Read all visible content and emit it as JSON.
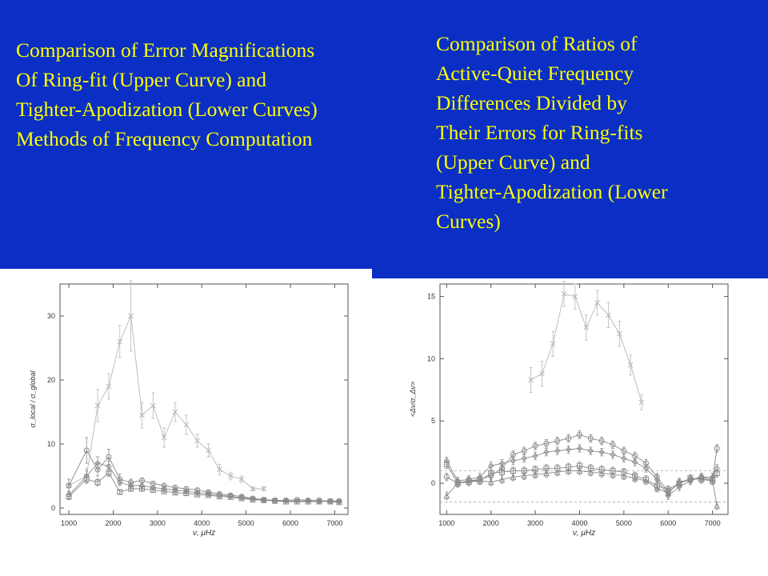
{
  "captions": {
    "left": [
      "Comparison of Error Magnifications",
      "Of Ring-fit (Upper Curve) and",
      "Tighter-Apodization (Lower Curves)",
      "Methods of Frequency Computation"
    ],
    "right": [
      "Comparison of Ratios of",
      "Active-Quiet Frequency",
      "Differences Divided by",
      "Their Errors for Ring-fits",
      "(Upper Curve) and",
      "Tighter-Apodization (Lower",
      "Curves)"
    ]
  },
  "colors": {
    "banner": "#0b2fc4",
    "caption_text": "#ffff00",
    "upper_curve": "#b8b8b8",
    "lower_curves": "#8a8a8a"
  },
  "chart_data": [
    {
      "type": "line",
      "xlabel": "ν, μHz",
      "ylabel": "σ_local / σ_global",
      "xlim": [
        800,
        7300
      ],
      "ylim": [
        -1,
        35
      ],
      "xticks": [
        1000,
        2000,
        3000,
        4000,
        5000,
        6000,
        7000
      ],
      "yticks": [
        0,
        10,
        20,
        30
      ],
      "grid": false,
      "series": [
        {
          "x": [
            1000,
            1400,
            1650,
            1900,
            2150,
            2400,
            2650,
            2900,
            3150,
            3400,
            3650,
            3900,
            4150,
            4400,
            4650,
            4900,
            5150,
            5400
          ],
          "y": [
            3.5,
            5,
            16,
            19,
            26,
            30,
            14.5,
            16,
            11,
            15,
            13,
            10.5,
            9,
            6,
            5,
            4.5,
            3,
            3
          ],
          "err": [
            1,
            1.2,
            2.5,
            2,
            2.5,
            5.5,
            2,
            2,
            1.5,
            1.5,
            1.5,
            1,
            1,
            0.8,
            0.6,
            0.5,
            0.3,
            0.3
          ]
        },
        {
          "x": [
            1000,
            1400,
            1650,
            1900,
            2150,
            2400,
            2650,
            2900,
            3150,
            3400,
            3650,
            3900,
            4150,
            4400,
            4650,
            4900,
            5150,
            5400,
            5650,
            5900,
            6150,
            6400,
            6650,
            6900,
            7100
          ],
          "y": [
            3.5,
            9,
            6,
            8,
            4.5,
            4,
            4.3,
            3.8,
            3.5,
            3.2,
            3,
            2.8,
            2.5,
            2.2,
            2,
            1.8,
            1.5,
            1.3,
            1.2,
            1.2,
            1.3,
            1.2,
            1.2,
            1.1,
            1.1
          ],
          "err": [
            1,
            2,
            1,
            1.2,
            0.8,
            0.5,
            0.4,
            0.4,
            0.3,
            0.3,
            0.3,
            0.3,
            0.2,
            0.2,
            0.2,
            0.2,
            0.2,
            0.2,
            0.1,
            0.1,
            0.1,
            0.1,
            0.1,
            0.1,
            0.1
          ]
        },
        {
          "x": [
            1000,
            1400,
            1650,
            1900,
            2150,
            2400,
            2650,
            2900,
            3150,
            3400,
            3650,
            3900,
            4150,
            4400,
            4650,
            4900,
            5150,
            5400,
            5650,
            5900,
            6150,
            6400,
            6650,
            6900,
            7100
          ],
          "y": [
            2,
            5,
            7,
            6.5,
            4,
            3.5,
            3.5,
            3.2,
            3,
            2.8,
            2.6,
            2.4,
            2.2,
            2,
            1.8,
            1.6,
            1.4,
            1.3,
            1.2,
            1.1,
            1.1,
            1.1,
            1,
            1,
            1
          ],
          "err": [
            0.6,
            0.8,
            1,
            0.8,
            0.5,
            0.4,
            0.4,
            0.3,
            0.3,
            0.3,
            0.2,
            0.2,
            0.2,
            0.2,
            0.2,
            0.2,
            0.1,
            0.1,
            0.1,
            0.1,
            0.1,
            0.1,
            0.1,
            0.1,
            0.1
          ]
        },
        {
          "x": [
            1000,
            1400,
            1650,
            1900,
            2150,
            2400,
            2650,
            2900,
            3150,
            3400,
            3650,
            3900,
            4150,
            4400,
            4650,
            4900,
            5150,
            5400,
            5650,
            5900,
            6150,
            6400,
            6650,
            6900,
            7100
          ],
          "y": [
            1.8,
            4.5,
            4,
            5.5,
            2.5,
            3,
            3,
            2.8,
            2.6,
            2.4,
            2.3,
            2.1,
            2,
            1.8,
            1.7,
            1.5,
            1.3,
            1.2,
            1.1,
            1,
            1,
            1,
            1,
            1,
            0.9
          ],
          "err": [
            0.5,
            0.6,
            0.5,
            0.6,
            0.3,
            0.3,
            0.3,
            0.3,
            0.2,
            0.2,
            0.2,
            0.2,
            0.2,
            0.2,
            0.1,
            0.1,
            0.1,
            0.1,
            0.1,
            0.1,
            0.1,
            0.1,
            0.1,
            0.1,
            0.1
          ]
        }
      ]
    },
    {
      "type": "line",
      "xlabel": "ν, μHz",
      "ylabel": "<Δν/σ_Δν>",
      "xlim": [
        850,
        7350
      ],
      "ylim": [
        -2.5,
        16
      ],
      "xticks": [
        1000,
        2000,
        3000,
        4000,
        5000,
        6000,
        7000
      ],
      "yticks": [
        0,
        5,
        10,
        15
      ],
      "grid": false,
      "reference_lines": [
        1,
        -1.5
      ],
      "series": [
        {
          "x": [
            2900,
            3150,
            3400,
            3650,
            3900,
            4150,
            4400,
            4650,
            4900,
            5150,
            5400
          ],
          "y": [
            8.3,
            8.8,
            11.2,
            15.2,
            15,
            12.5,
            14.5,
            13.5,
            12,
            9.5,
            6.5
          ],
          "err": [
            1,
            1,
            1,
            1,
            1,
            1,
            1,
            1,
            1,
            0.8,
            0.6
          ]
        },
        {
          "x": [
            1000,
            1250,
            1500,
            1750,
            2000,
            2250,
            2500,
            2750,
            3000,
            3250,
            3500,
            3750,
            4000,
            4250,
            4500,
            4750,
            5000,
            5250,
            5500,
            5750,
            6000,
            6250,
            6500,
            6750,
            7000,
            7100
          ],
          "y": [
            0.5,
            0,
            0.2,
            0.3,
            0.6,
            1.2,
            2.3,
            2.6,
            3.0,
            3.2,
            3.4,
            3.6,
            3.9,
            3.6,
            3.4,
            3.1,
            2.6,
            2.2,
            1.6,
            0.5,
            -0.7,
            0,
            0.3,
            0.5,
            0.3,
            2.8
          ],
          "err": [
            0.3,
            0.3,
            0.3,
            0.3,
            0.3,
            0.3,
            0.3,
            0.3,
            0.3,
            0.3,
            0.3,
            0.3,
            0.3,
            0.3,
            0.3,
            0.3,
            0.3,
            0.3,
            0.3,
            0.3,
            0.3,
            0.3,
            0.3,
            0.3,
            0.3,
            0.3
          ]
        },
        {
          "x": [
            1000,
            1250,
            1500,
            1750,
            2000,
            2250,
            2500,
            2750,
            3000,
            3250,
            3500,
            3750,
            4000,
            4250,
            4500,
            4750,
            5000,
            5250,
            5500,
            5750,
            6000,
            6250,
            6500,
            6750,
            7000,
            7100
          ],
          "y": [
            1.8,
            0.2,
            0.3,
            0.5,
            1.4,
            1.6,
            1.8,
            2,
            2.2,
            2.5,
            2.6,
            2.7,
            2.8,
            2.6,
            2.5,
            2.3,
            2,
            1.7,
            1.2,
            0.3,
            -1,
            -0.3,
            0.2,
            0.5,
            0.5,
            1.2
          ],
          "err": [
            0.3,
            0.3,
            0.3,
            0.3,
            0.3,
            0.3,
            0.3,
            0.3,
            0.3,
            0.3,
            0.3,
            0.3,
            0.3,
            0.3,
            0.3,
            0.3,
            0.3,
            0.3,
            0.3,
            0.3,
            0.3,
            0.3,
            0.3,
            0.3,
            0.3,
            0.3
          ]
        },
        {
          "x": [
            1000,
            1250,
            1500,
            1750,
            2000,
            2250,
            2500,
            2750,
            3000,
            3250,
            3500,
            3750,
            4000,
            4250,
            4500,
            4750,
            5000,
            5250,
            5500,
            5750,
            6000,
            6250,
            6500,
            6750,
            7000,
            7100
          ],
          "y": [
            1.5,
            0,
            0.2,
            0.2,
            0.8,
            0.9,
            1,
            1,
            1.1,
            1.2,
            1.2,
            1.3,
            1.4,
            1.2,
            1.1,
            1,
            0.9,
            0.6,
            0.3,
            -0.2,
            -0.5,
            0,
            0.4,
            0.3,
            0.2,
            0.8
          ],
          "err": [
            0.3,
            0.3,
            0.3,
            0.3,
            0.3,
            0.3,
            0.3,
            0.3,
            0.3,
            0.3,
            0.3,
            0.3,
            0.3,
            0.3,
            0.3,
            0.3,
            0.3,
            0.3,
            0.3,
            0.3,
            0.3,
            0.3,
            0.3,
            0.3,
            0.3,
            0.3
          ]
        },
        {
          "x": [
            1000,
            1250,
            1500,
            1750,
            2000,
            2250,
            2500,
            2750,
            3000,
            3250,
            3500,
            3750,
            4000,
            4250,
            4500,
            4750,
            5000,
            5250,
            5500,
            5750,
            6000,
            6250,
            6500,
            6750,
            7000,
            7100
          ],
          "y": [
            -1,
            0,
            0.1,
            0.2,
            0.1,
            0.3,
            0.5,
            0.6,
            0.7,
            0.8,
            0.9,
            1,
            1,
            0.9,
            0.8,
            0.7,
            0.6,
            0.4,
            0.2,
            -0.4,
            -0.8,
            0.1,
            0.3,
            0.4,
            0.2,
            -1.8
          ],
          "err": [
            0.3,
            0.3,
            0.3,
            0.3,
            0.3,
            0.3,
            0.3,
            0.3,
            0.3,
            0.3,
            0.3,
            0.3,
            0.3,
            0.3,
            0.3,
            0.3,
            0.3,
            0.3,
            0.3,
            0.3,
            0.3,
            0.3,
            0.3,
            0.3,
            0.3,
            0.3
          ]
        }
      ]
    }
  ]
}
